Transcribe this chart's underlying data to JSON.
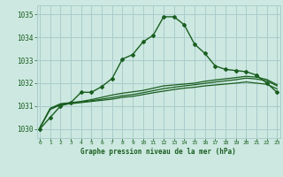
{
  "title": "Graphe pression niveau de la mer (hPa)",
  "bg_color": "#cce8e0",
  "grid_color": "#aacccc",
  "line_color_dark": "#1a5e20",
  "line_color_mid": "#2d6a2d",
  "x_ticks": [
    0,
    1,
    2,
    3,
    4,
    5,
    6,
    7,
    8,
    9,
    10,
    11,
    12,
    13,
    14,
    15,
    16,
    17,
    18,
    19,
    20,
    21,
    22,
    23
  ],
  "y_ticks": [
    1030,
    1031,
    1032,
    1033,
    1034,
    1035
  ],
  "ylim": [
    1029.6,
    1035.4
  ],
  "xlim": [
    -0.3,
    23.3
  ],
  "series1": [
    1030.0,
    1030.5,
    1031.0,
    1031.15,
    1031.6,
    1031.6,
    1031.85,
    1032.2,
    1033.05,
    1033.25,
    1033.8,
    1034.1,
    1034.9,
    1034.9,
    1034.55,
    1033.7,
    1033.3,
    1032.75,
    1032.6,
    1032.55,
    1032.5,
    1032.35,
    1032.0,
    1031.6
  ],
  "series2": [
    1030.05,
    1030.85,
    1031.05,
    1031.1,
    1031.15,
    1031.2,
    1031.25,
    1031.3,
    1031.38,
    1031.42,
    1031.5,
    1031.58,
    1031.65,
    1031.72,
    1031.78,
    1031.82,
    1031.88,
    1031.92,
    1031.96,
    1032.0,
    1032.05,
    1032.0,
    1031.95,
    1031.75
  ],
  "series3": [
    1030.05,
    1030.88,
    1031.08,
    1031.13,
    1031.18,
    1031.23,
    1031.3,
    1031.37,
    1031.45,
    1031.5,
    1031.58,
    1031.67,
    1031.76,
    1031.82,
    1031.88,
    1031.93,
    1031.99,
    1032.05,
    1032.1,
    1032.15,
    1032.22,
    1032.18,
    1032.1,
    1031.88
  ],
  "series4": [
    1030.05,
    1030.9,
    1031.1,
    1031.15,
    1031.2,
    1031.28,
    1031.38,
    1031.48,
    1031.56,
    1031.62,
    1031.68,
    1031.78,
    1031.88,
    1031.92,
    1031.96,
    1032.0,
    1032.08,
    1032.14,
    1032.19,
    1032.24,
    1032.3,
    1032.26,
    1032.16,
    1031.93
  ]
}
